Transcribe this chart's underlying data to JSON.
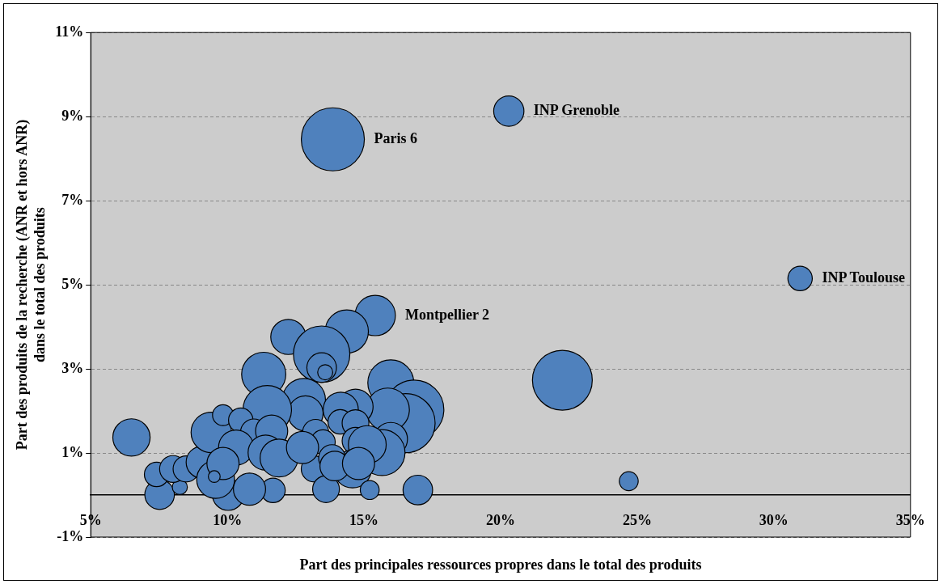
{
  "chart_data": {
    "type": "bubble",
    "xlabel": "Part des principales ressources propres dans le total des produits",
    "ylabel": "Part des produits de la recherche (ANR et hors ANR)\ndans le total des produits",
    "series": [
      {
        "color": "#4f81bd",
        "x": [
          13.86,
          20.3,
          30.96,
          15.41,
          22.26,
          24.69,
          6.49,
          12.23,
          14.37,
          13.45,
          13.45,
          13.58,
          11.33,
          15.98,
          16.84,
          16.52,
          15.87,
          15.98,
          15.66,
          12.8,
          12.86,
          11.46,
          14.69,
          14.15,
          14.13,
          14.69,
          13.23,
          13.5,
          14.69,
          13.18,
          14.58,
          13.83,
          13.61,
          15.21,
          16.97,
          11.67,
          10.03,
          10.81,
          7.52,
          8.26,
          7.41,
          8.01,
          8.49,
          9.08,
          9.57,
          9.41,
          9.84,
          10.49,
          10.97,
          11.62,
          10.32,
          11.4,
          11.89,
          9.84,
          12.75,
          15.12,
          13.93,
          14.8,
          9.52
        ],
        "values": [
          8.46,
          9.13,
          5.15,
          4.27,
          2.73,
          0.33,
          1.37,
          3.76,
          3.89,
          3.35,
          3.03,
          2.92,
          2.87,
          2.67,
          2.03,
          1.71,
          2.03,
          1.33,
          1.01,
          2.26,
          1.94,
          2.03,
          2.1,
          2.03,
          1.74,
          1.71,
          1.49,
          1.26,
          1.29,
          0.62,
          0.62,
          0.88,
          0.14,
          0.12,
          0.12,
          0.11,
          0.01,
          0.14,
          0.01,
          0.19,
          0.49,
          0.62,
          0.62,
          0.78,
          0.37,
          1.49,
          1.9,
          1.78,
          1.49,
          1.52,
          1.13,
          1.01,
          0.88,
          0.75,
          1.13,
          1.2,
          0.69,
          0.75,
          0.44
        ],
        "sizes": [
          1,
          0.23,
          0.15,
          0.41,
          0.9,
          0.09,
          0.35,
          0.31,
          0.47,
          0.8,
          0.22,
          0.057,
          0.49,
          0.53,
          0.88,
          0.88,
          0.47,
          0.28,
          0.53,
          0.47,
          0.31,
          0.59,
          0.31,
          0.31,
          0.15,
          0.18,
          0.17,
          0.15,
          0.18,
          0.17,
          0.36,
          0.18,
          0.18,
          0.09,
          0.22,
          0.15,
          0.25,
          0.26,
          0.22,
          0.057,
          0.15,
          0.18,
          0.17,
          0.26,
          0.36,
          0.41,
          0.11,
          0.15,
          0.18,
          0.26,
          0.31,
          0.31,
          0.36,
          0.26,
          0.26,
          0.36,
          0.22,
          0.26,
          0.035
        ]
      }
    ],
    "xlim": [
      5,
      35
    ],
    "xticks": [
      {
        "value": 5,
        "label": "5%"
      },
      {
        "value": 10,
        "label": "10%"
      },
      {
        "value": 15,
        "label": "15%"
      },
      {
        "value": 20,
        "label": "20%"
      },
      {
        "value": 25,
        "label": "25%"
      },
      {
        "value": 30,
        "label": "30%"
      },
      {
        "value": 35,
        "label": "35%"
      }
    ],
    "ylim": [
      -1,
      11
    ],
    "yticks": [
      {
        "value": -1,
        "label": "-1%"
      },
      {
        "value": 1,
        "label": "1%"
      },
      {
        "value": 3,
        "label": "3%"
      },
      {
        "value": 5,
        "label": "5%"
      },
      {
        "value": 7,
        "label": "7%"
      },
      {
        "value": 9,
        "label": "9%"
      },
      {
        "value": 11,
        "label": "11%"
      }
    ],
    "grid": "y",
    "legend": false,
    "marker": "circle",
    "annotations": [
      {
        "text": "Paris 6",
        "x": 13.86,
        "y": 8.46
      },
      {
        "text": "INP Grenoble",
        "x": 20.3,
        "y": 9.13
      },
      {
        "text": "INP Toulouse",
        "x": 30.96,
        "y": 5.15
      },
      {
        "text": "Montpellier 2",
        "x": 15.41,
        "y": 4.27
      }
    ]
  }
}
